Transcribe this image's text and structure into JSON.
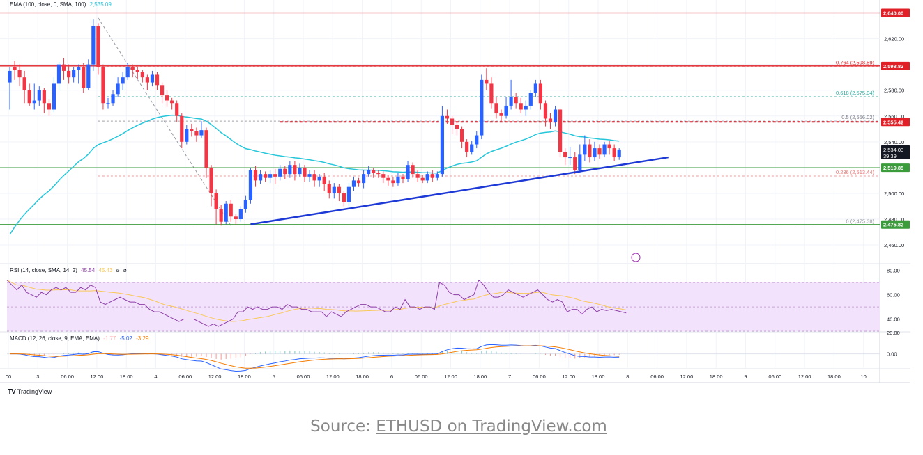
{
  "chart_data": {
    "type": "candlestick",
    "symbol": "ETHUSD",
    "price_axis": {
      "range": [
        2446,
        2650
      ],
      "ticks": [
        "2,620.00",
        "2,600.00",
        "2,580.00",
        "2,560.00",
        "2,540.00",
        "2,520.00",
        "2,500.00",
        "2,480.00",
        "2,460.00"
      ]
    },
    "time_axis": {
      "labels": [
        "00",
        "3",
        "06:00",
        "12:00",
        "18:00",
        "4",
        "06:00",
        "12:00",
        "18:00",
        "5",
        "06:00",
        "12:00",
        "18:00",
        "6",
        "06:00",
        "12:00",
        "18:00",
        "7",
        "06:00",
        "12:00",
        "18:00",
        "8",
        "06:00",
        "12:00",
        "18:00",
        "9",
        "06:00",
        "12:00",
        "18:00",
        "10"
      ]
    },
    "candles": [
      [
        2586,
        2595,
        2565,
        2598
      ],
      [
        2598,
        2596,
        2588,
        2603
      ],
      [
        2596,
        2590,
        2583,
        2600
      ],
      [
        2590,
        2580,
        2570,
        2595
      ],
      [
        2580,
        2570,
        2568,
        2585
      ],
      [
        2570,
        2572,
        2565,
        2585
      ],
      [
        2572,
        2580,
        2568,
        2583
      ],
      [
        2580,
        2570,
        2562,
        2582
      ],
      [
        2570,
        2565,
        2560,
        2573
      ],
      [
        2565,
        2585,
        2563,
        2590
      ],
      [
        2585,
        2600,
        2580,
        2602
      ],
      [
        2600,
        2595,
        2588,
        2605
      ],
      [
        2595,
        2590,
        2585,
        2600
      ],
      [
        2590,
        2596,
        2586,
        2598
      ],
      [
        2596,
        2598,
        2585,
        2600
      ],
      [
        2598,
        2582,
        2578,
        2601
      ],
      [
        2582,
        2600,
        2580,
        2604
      ],
      [
        2600,
        2630,
        2595,
        2635
      ],
      [
        2630,
        2598,
        2592,
        2632
      ],
      [
        2598,
        2570,
        2565,
        2600
      ],
      [
        2570,
        2570,
        2566,
        2574
      ],
      [
        2570,
        2577,
        2568,
        2580
      ],
      [
        2577,
        2585,
        2575,
        2590
      ],
      [
        2585,
        2590,
        2580,
        2594
      ],
      [
        2590,
        2598,
        2588,
        2601
      ],
      [
        2598,
        2596,
        2590,
        2600
      ],
      [
        2596,
        2594,
        2589,
        2598
      ],
      [
        2594,
        2590,
        2586,
        2596
      ],
      [
        2590,
        2586,
        2580,
        2592
      ],
      [
        2586,
        2592,
        2583,
        2595
      ],
      [
        2592,
        2584,
        2580,
        2594
      ],
      [
        2584,
        2576,
        2570,
        2586
      ],
      [
        2576,
        2572,
        2567,
        2580
      ],
      [
        2572,
        2570,
        2565,
        2574
      ],
      [
        2570,
        2560,
        2555,
        2572
      ],
      [
        2560,
        2540,
        2535,
        2562
      ],
      [
        2540,
        2550,
        2538,
        2553
      ],
      [
        2550,
        2548,
        2544,
        2554
      ],
      [
        2548,
        2545,
        2540,
        2551
      ],
      [
        2545,
        2549,
        2543,
        2556
      ],
      [
        2549,
        2520,
        2512,
        2551
      ],
      [
        2520,
        2500,
        2490,
        2522
      ],
      [
        2500,
        2488,
        2476,
        2503
      ],
      [
        2488,
        2478,
        2475,
        2491
      ],
      [
        2478,
        2492,
        2476,
        2494
      ],
      [
        2492,
        2482,
        2478,
        2495
      ],
      [
        2482,
        2480,
        2476,
        2484
      ],
      [
        2480,
        2488,
        2478,
        2490
      ],
      [
        2488,
        2495,
        2485,
        2498
      ],
      [
        2495,
        2518,
        2492,
        2520
      ],
      [
        2518,
        2510,
        2505,
        2521
      ],
      [
        2510,
        2515,
        2507,
        2518
      ],
      [
        2515,
        2512,
        2509,
        2517
      ],
      [
        2512,
        2515,
        2508,
        2518
      ],
      [
        2515,
        2513,
        2507,
        2519
      ],
      [
        2513,
        2519,
        2510,
        2522
      ],
      [
        2519,
        2515,
        2511,
        2521
      ],
      [
        2515,
        2522,
        2512,
        2525
      ],
      [
        2522,
        2515,
        2510,
        2525
      ],
      [
        2515,
        2520,
        2513,
        2523
      ],
      [
        2520,
        2513,
        2509,
        2522
      ],
      [
        2513,
        2515,
        2509,
        2518
      ],
      [
        2515,
        2510,
        2505,
        2518
      ],
      [
        2510,
        2513,
        2505,
        2515
      ],
      [
        2513,
        2507,
        2502,
        2516
      ],
      [
        2507,
        2500,
        2496,
        2510
      ],
      [
        2500,
        2505,
        2496,
        2508
      ],
      [
        2505,
        2500,
        2494,
        2507
      ],
      [
        2500,
        2493,
        2490,
        2502
      ],
      [
        2493,
        2505,
        2490,
        2508
      ],
      [
        2505,
        2510,
        2502,
        2513
      ],
      [
        2510,
        2508,
        2505,
        2512
      ],
      [
        2508,
        2515,
        2504,
        2518
      ],
      [
        2515,
        2518,
        2513,
        2521
      ],
      [
        2518,
        2516,
        2512,
        2520
      ],
      [
        2516,
        2515,
        2512,
        2518
      ],
      [
        2515,
        2512,
        2508,
        2517
      ],
      [
        2512,
        2510,
        2506,
        2514
      ],
      [
        2510,
        2508,
        2505,
        2513
      ],
      [
        2508,
        2513,
        2506,
        2516
      ],
      [
        2513,
        2511,
        2508,
        2515
      ],
      [
        2511,
        2522,
        2509,
        2525
      ],
      [
        2522,
        2515,
        2512,
        2524
      ],
      [
        2515,
        2512,
        2509,
        2518
      ],
      [
        2512,
        2510,
        2508,
        2514
      ],
      [
        2510,
        2515,
        2508,
        2517
      ],
      [
        2515,
        2512,
        2509,
        2518
      ],
      [
        2512,
        2515,
        2510,
        2517
      ],
      [
        2515,
        2560,
        2513,
        2568
      ],
      [
        2560,
        2558,
        2554,
        2565
      ],
      [
        2558,
        2553,
        2546,
        2560
      ],
      [
        2553,
        2550,
        2545,
        2556
      ],
      [
        2550,
        2540,
        2535,
        2552
      ],
      [
        2540,
        2532,
        2528,
        2542
      ],
      [
        2532,
        2538,
        2530,
        2541
      ],
      [
        2538,
        2545,
        2535,
        2548
      ],
      [
        2545,
        2588,
        2542,
        2592
      ],
      [
        2588,
        2585,
        2580,
        2597
      ],
      [
        2585,
        2570,
        2566,
        2590
      ],
      [
        2570,
        2562,
        2558,
        2575
      ],
      [
        2562,
        2560,
        2555,
        2565
      ],
      [
        2560,
        2568,
        2558,
        2575
      ],
      [
        2568,
        2575,
        2565,
        2588
      ],
      [
        2575,
        2570,
        2566,
        2578
      ],
      [
        2570,
        2565,
        2562,
        2574
      ],
      [
        2565,
        2568,
        2560,
        2572
      ],
      [
        2568,
        2578,
        2565,
        2580
      ],
      [
        2578,
        2585,
        2575,
        2588
      ],
      [
        2585,
        2570,
        2565,
        2588
      ],
      [
        2570,
        2558,
        2552,
        2572
      ],
      [
        2558,
        2555,
        2550,
        2562
      ],
      [
        2555,
        2565,
        2552,
        2568
      ],
      [
        2565,
        2532,
        2528,
        2566
      ],
      [
        2532,
        2528,
        2522,
        2535
      ],
      [
        2528,
        2528,
        2522,
        2536
      ],
      [
        2528,
        2518,
        2515,
        2532
      ],
      [
        2518,
        2530,
        2516,
        2538
      ],
      [
        2530,
        2538,
        2525,
        2545
      ],
      [
        2538,
        2528,
        2524,
        2542
      ],
      [
        2528,
        2535,
        2525,
        2540
      ],
      [
        2535,
        2530,
        2527,
        2538
      ],
      [
        2530,
        2538,
        2528,
        2540
      ],
      [
        2538,
        2535,
        2530,
        2541
      ],
      [
        2535,
        2528,
        2525,
        2538
      ],
      [
        2528,
        2534,
        2526,
        2535
      ]
    ],
    "series": [
      {
        "name": "EMA (100, close, 0, SMA, 100)",
        "value": "2,535.09"
      }
    ],
    "horizontal_levels": [
      {
        "price": 2640,
        "style": "solid",
        "axis_label": "2,640.00"
      },
      {
        "price": 2598.82,
        "style": "solid",
        "axis_label": "2,598.82"
      },
      {
        "price": 2555.42,
        "style": "dashed",
        "axis_label": "2,555.42"
      },
      {
        "price": 2519.85,
        "style": "solid",
        "axis_label": "2,519.85"
      },
      {
        "price": 2475.82,
        "style": "solid",
        "axis_label": "2,475.82"
      }
    ],
    "fibonacci": [
      {
        "label": "0.764 (2,598.59)",
        "price": 2598.59
      },
      {
        "label": "0.618 (2,575.04)",
        "price": 2575.04
      },
      {
        "label": "0.5 (2,556.02)",
        "price": 2556.02
      },
      {
        "label": "0.236 (2,513.44)",
        "price": 2513.44
      },
      {
        "label": "0 (2,475.38)",
        "price": 2475.38
      }
    ],
    "trendline": {
      "from_price": 2476,
      "to_price": 2528
    },
    "current": {
      "price": "2,534.03",
      "countdown": "39:39"
    },
    "rsi": {
      "label": "RSI (14, close, SMA, 14, 2)",
      "values": [
        "45.54",
        "45.43",
        "ø",
        "ø"
      ],
      "range": [
        30,
        85
      ],
      "ticks": [
        "80.00",
        "60.00",
        "40.00"
      ],
      "band": [
        30,
        70
      ],
      "data": [
        72,
        68,
        64,
        68,
        62,
        60,
        58,
        62,
        60,
        64,
        66,
        64,
        66,
        62,
        62,
        66,
        64,
        68,
        66,
        54,
        52,
        54,
        56,
        58,
        56,
        54,
        54,
        52,
        52,
        48,
        46,
        46,
        44,
        42,
        40,
        38,
        40,
        40,
        40,
        38,
        36,
        34,
        36,
        34,
        36,
        38,
        40,
        46,
        46,
        50,
        48,
        50,
        48,
        48,
        50,
        50,
        48,
        52,
        50,
        50,
        48,
        48,
        46,
        46,
        46,
        42,
        46,
        44,
        42,
        46,
        48,
        50,
        52,
        52,
        50,
        50,
        48,
        46,
        46,
        50,
        48,
        56,
        50,
        50,
        48,
        50,
        50,
        48,
        70,
        68,
        62,
        60,
        60,
        56,
        58,
        60,
        72,
        68,
        62,
        58,
        58,
        60,
        64,
        62,
        60,
        58,
        60,
        62,
        64,
        60,
        56,
        54,
        56,
        54,
        46,
        48,
        48,
        44,
        48,
        50,
        46,
        48,
        47,
        48,
        47,
        46,
        45
      ]
    },
    "macd": {
      "label": "MACD (12, 26, close, 9, EMA, EMA)",
      "values": [
        "-1.77",
        "-5.02",
        "-3.29"
      ],
      "range": [
        -14,
        20
      ],
      "ticks": [
        "20.00",
        "0.00"
      ]
    }
  },
  "source": {
    "prefix": "Source: ",
    "link_text": "ETHUSD on TradingView.com"
  },
  "branding": {
    "logo": "TV",
    "name": "TradingView"
  },
  "colors": {
    "up": "#2962ff",
    "down": "#f23645",
    "ema": "#26c6da",
    "trendline": "#1e3ad6",
    "resistance": "#e01f26",
    "support": "#3b9c3b",
    "rsi": "#8d3ea7",
    "rsi_band": "#f3e2fb",
    "macd": "#2962ff",
    "signal": "#f57c00"
  }
}
